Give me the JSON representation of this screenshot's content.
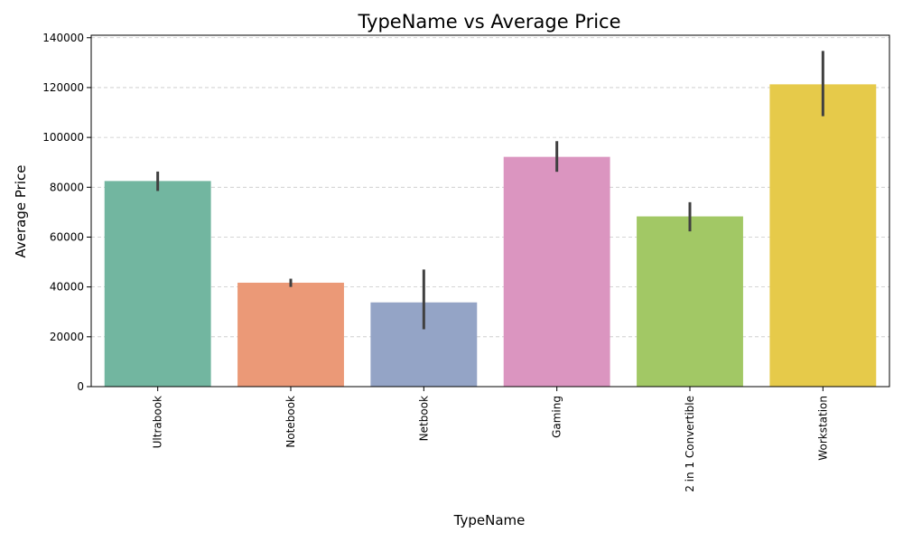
{
  "chart_data": {
    "type": "bar",
    "title": "TypeName vs Average Price",
    "xlabel": "TypeName",
    "ylabel": "Average Price",
    "categories": [
      "Ultrabook",
      "Notebook",
      "Netbook",
      "Gaming",
      "2 in 1 Convertible",
      "Workstation"
    ],
    "values": [
      82500,
      41700,
      33800,
      92200,
      68300,
      121300
    ],
    "error_low": [
      78500,
      40000,
      23000,
      86200,
      62300,
      108500
    ],
    "error_high": [
      86300,
      43300,
      47000,
      98500,
      74000,
      134700
    ],
    "colors": [
      "#72b6a0",
      "#eb9977",
      "#94a4c6",
      "#db95c0",
      "#a2c865",
      "#e6ca4a"
    ],
    "error_bar_color": "#404040",
    "ylim": [
      0,
      141000
    ],
    "yticks": [
      0,
      20000,
      40000,
      60000,
      80000,
      100000,
      120000,
      140000
    ],
    "grid": "y-dashed",
    "legend": "none"
  }
}
